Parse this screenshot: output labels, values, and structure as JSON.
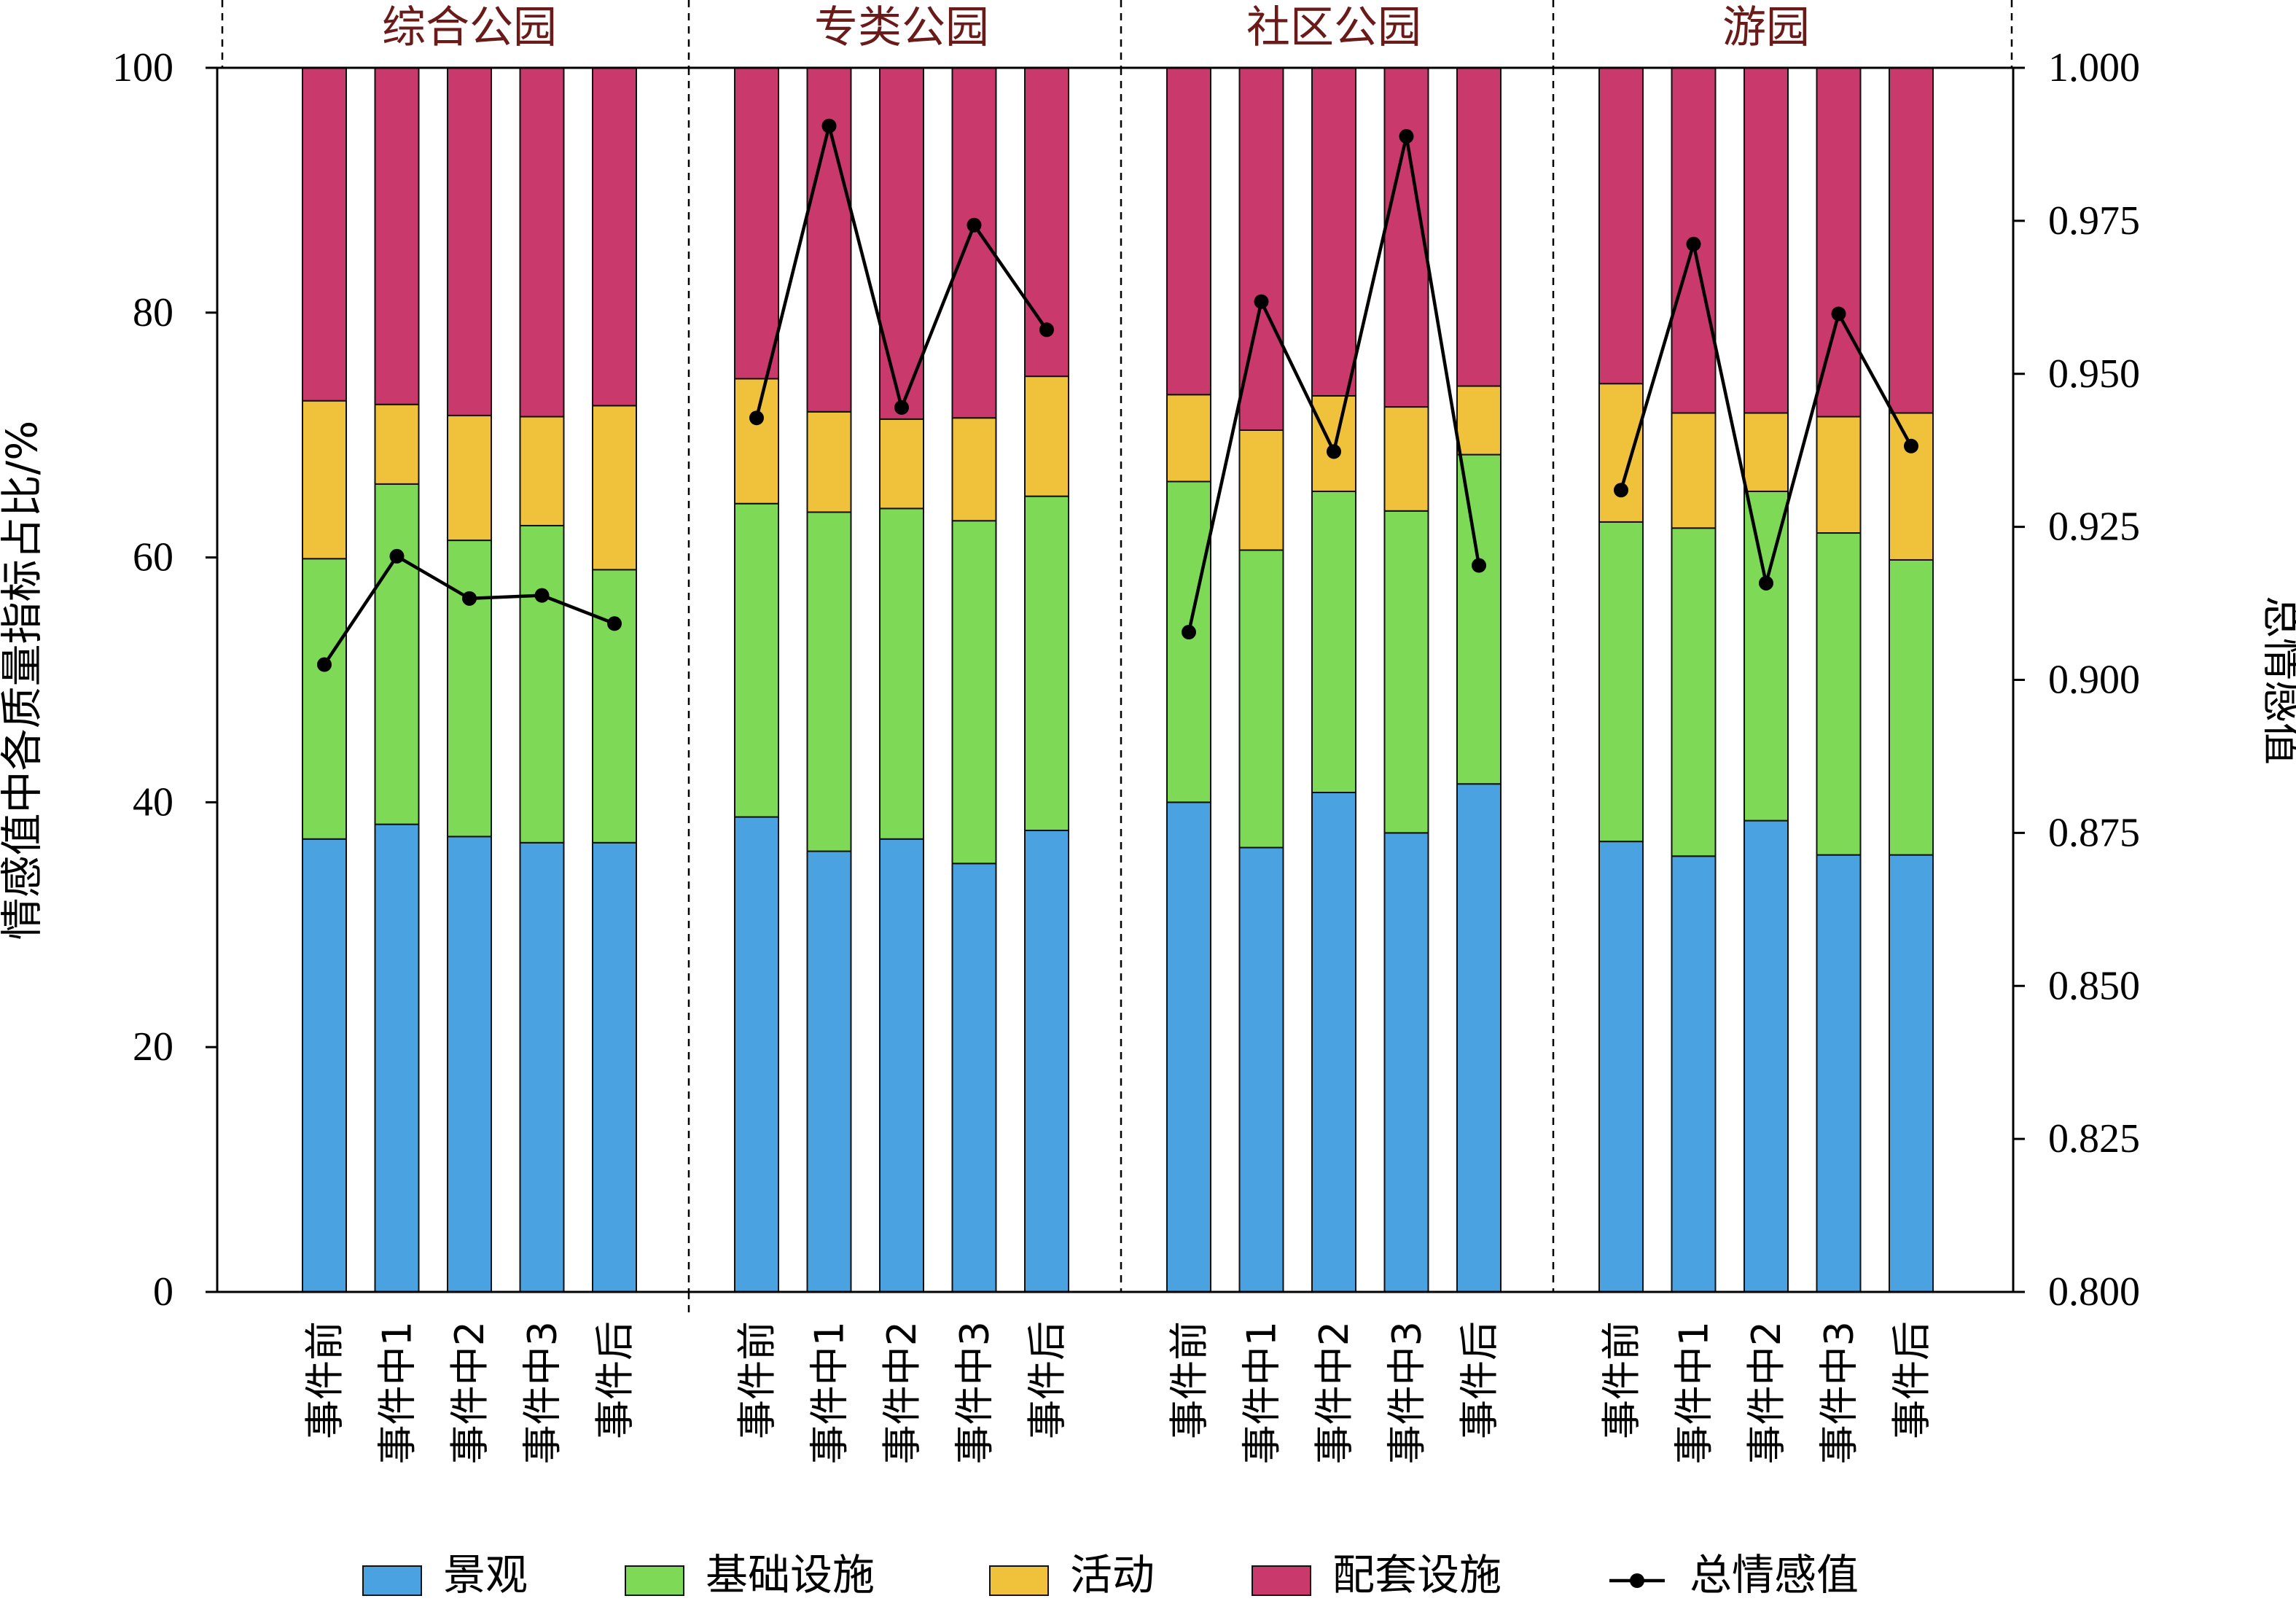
{
  "chart_data": {
    "type": "bar",
    "stacked": true,
    "groups": [
      "综合公园",
      "专类公园",
      "社区公园",
      "游园"
    ],
    "categories": [
      "事件前",
      "事件中1",
      "事件中2",
      "事件中3",
      "事件后"
    ],
    "ylabel_left": "情感值中各质量指标占比/%",
    "ylabel_right": "总情感值",
    "ylim_left": [
      0,
      100
    ],
    "ylim_right": [
      0.8,
      1.0
    ],
    "yticks_left": [
      "0",
      "20",
      "40",
      "60",
      "80",
      "100"
    ],
    "yticks_right": [
      "0.800",
      "0.825",
      "0.850",
      "0.875",
      "0.900",
      "0.925",
      "0.950",
      "0.975",
      "1.000"
    ],
    "series": [
      {
        "name": "景观",
        "color": "#4aa3e0",
        "values": [
          [
            37.0,
            38.2,
            37.2,
            36.7,
            36.7
          ],
          [
            38.8,
            36.0,
            37.0,
            35.0,
            37.7
          ],
          [
            40.0,
            36.3,
            40.8,
            37.5,
            41.5
          ],
          [
            36.8,
            35.6,
            38.5,
            35.7,
            35.7
          ]
        ]
      },
      {
        "name": "基础设施",
        "color": "#7ed957",
        "values": [
          [
            22.9,
            27.8,
            24.2,
            25.9,
            22.3
          ],
          [
            25.6,
            27.7,
            27.0,
            28.0,
            27.3
          ],
          [
            26.2,
            24.3,
            24.6,
            26.3,
            26.9
          ],
          [
            26.1,
            26.8,
            26.9,
            26.3,
            24.1
          ]
        ]
      },
      {
        "name": "活动",
        "color": "#f0c23b",
        "values": [
          [
            12.9,
            6.5,
            10.2,
            8.9,
            13.4
          ],
          [
            10.2,
            8.2,
            7.3,
            8.4,
            9.8
          ],
          [
            7.1,
            9.8,
            7.8,
            8.5,
            5.6
          ],
          [
            11.3,
            9.4,
            6.4,
            9.5,
            12.0
          ]
        ]
      },
      {
        "name": "配套设施",
        "color": "#c9396b",
        "values": [
          [
            27.2,
            27.5,
            28.4,
            28.5,
            27.6
          ],
          [
            25.4,
            28.1,
            28.7,
            28.6,
            25.2
          ],
          [
            26.7,
            29.6,
            26.8,
            27.7,
            26.0
          ],
          [
            25.8,
            28.2,
            28.2,
            28.5,
            28.2
          ]
        ]
      }
    ],
    "line_series": {
      "name": "总情感值",
      "color": "#000000",
      "values": [
        [
          0.9025,
          0.9202,
          0.9133,
          0.9138,
          0.9092
        ],
        [
          0.9428,
          0.9905,
          0.9445,
          0.9743,
          0.9572
        ],
        [
          0.9078,
          0.9618,
          0.9373,
          0.9888,
          0.9187
        ],
        [
          0.931,
          0.9712,
          0.9158,
          0.9598,
          0.9382
        ]
      ]
    },
    "legend": [
      "景观",
      "基础设施",
      "活动",
      "配套设施",
      "总情感值"
    ],
    "legend_position": "bottom"
  }
}
